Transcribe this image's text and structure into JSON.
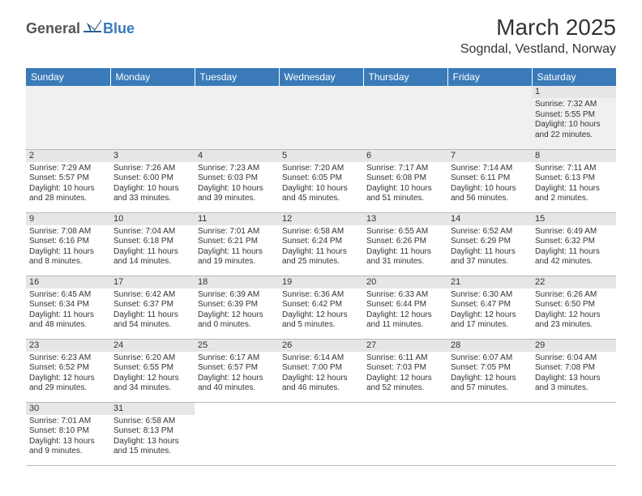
{
  "logo": {
    "general": "General",
    "blue": "Blue"
  },
  "title": "March 2025",
  "location": "Sogndal, Vestland, Norway",
  "colors": {
    "headerBar": "#3a7ab8",
    "dayNumBar": "#e6e6e6",
    "emptyCell": "#f0f0f0",
    "text": "#333333",
    "border": "#b8b8b8"
  },
  "weekdays": [
    "Sunday",
    "Monday",
    "Tuesday",
    "Wednesday",
    "Thursday",
    "Friday",
    "Saturday"
  ],
  "weeks": [
    [
      null,
      null,
      null,
      null,
      null,
      null,
      {
        "day": "1",
        "sunrise": "Sunrise: 7:32 AM",
        "sunset": "Sunset: 5:55 PM",
        "daylight1": "Daylight: 10 hours",
        "daylight2": "and 22 minutes."
      }
    ],
    [
      {
        "day": "2",
        "sunrise": "Sunrise: 7:29 AM",
        "sunset": "Sunset: 5:57 PM",
        "daylight1": "Daylight: 10 hours",
        "daylight2": "and 28 minutes."
      },
      {
        "day": "3",
        "sunrise": "Sunrise: 7:26 AM",
        "sunset": "Sunset: 6:00 PM",
        "daylight1": "Daylight: 10 hours",
        "daylight2": "and 33 minutes."
      },
      {
        "day": "4",
        "sunrise": "Sunrise: 7:23 AM",
        "sunset": "Sunset: 6:03 PM",
        "daylight1": "Daylight: 10 hours",
        "daylight2": "and 39 minutes."
      },
      {
        "day": "5",
        "sunrise": "Sunrise: 7:20 AM",
        "sunset": "Sunset: 6:05 PM",
        "daylight1": "Daylight: 10 hours",
        "daylight2": "and 45 minutes."
      },
      {
        "day": "6",
        "sunrise": "Sunrise: 7:17 AM",
        "sunset": "Sunset: 6:08 PM",
        "daylight1": "Daylight: 10 hours",
        "daylight2": "and 51 minutes."
      },
      {
        "day": "7",
        "sunrise": "Sunrise: 7:14 AM",
        "sunset": "Sunset: 6:11 PM",
        "daylight1": "Daylight: 10 hours",
        "daylight2": "and 56 minutes."
      },
      {
        "day": "8",
        "sunrise": "Sunrise: 7:11 AM",
        "sunset": "Sunset: 6:13 PM",
        "daylight1": "Daylight: 11 hours",
        "daylight2": "and 2 minutes."
      }
    ],
    [
      {
        "day": "9",
        "sunrise": "Sunrise: 7:08 AM",
        "sunset": "Sunset: 6:16 PM",
        "daylight1": "Daylight: 11 hours",
        "daylight2": "and 8 minutes."
      },
      {
        "day": "10",
        "sunrise": "Sunrise: 7:04 AM",
        "sunset": "Sunset: 6:18 PM",
        "daylight1": "Daylight: 11 hours",
        "daylight2": "and 14 minutes."
      },
      {
        "day": "11",
        "sunrise": "Sunrise: 7:01 AM",
        "sunset": "Sunset: 6:21 PM",
        "daylight1": "Daylight: 11 hours",
        "daylight2": "and 19 minutes."
      },
      {
        "day": "12",
        "sunrise": "Sunrise: 6:58 AM",
        "sunset": "Sunset: 6:24 PM",
        "daylight1": "Daylight: 11 hours",
        "daylight2": "and 25 minutes."
      },
      {
        "day": "13",
        "sunrise": "Sunrise: 6:55 AM",
        "sunset": "Sunset: 6:26 PM",
        "daylight1": "Daylight: 11 hours",
        "daylight2": "and 31 minutes."
      },
      {
        "day": "14",
        "sunrise": "Sunrise: 6:52 AM",
        "sunset": "Sunset: 6:29 PM",
        "daylight1": "Daylight: 11 hours",
        "daylight2": "and 37 minutes."
      },
      {
        "day": "15",
        "sunrise": "Sunrise: 6:49 AM",
        "sunset": "Sunset: 6:32 PM",
        "daylight1": "Daylight: 11 hours",
        "daylight2": "and 42 minutes."
      }
    ],
    [
      {
        "day": "16",
        "sunrise": "Sunrise: 6:45 AM",
        "sunset": "Sunset: 6:34 PM",
        "daylight1": "Daylight: 11 hours",
        "daylight2": "and 48 minutes."
      },
      {
        "day": "17",
        "sunrise": "Sunrise: 6:42 AM",
        "sunset": "Sunset: 6:37 PM",
        "daylight1": "Daylight: 11 hours",
        "daylight2": "and 54 minutes."
      },
      {
        "day": "18",
        "sunrise": "Sunrise: 6:39 AM",
        "sunset": "Sunset: 6:39 PM",
        "daylight1": "Daylight: 12 hours",
        "daylight2": "and 0 minutes."
      },
      {
        "day": "19",
        "sunrise": "Sunrise: 6:36 AM",
        "sunset": "Sunset: 6:42 PM",
        "daylight1": "Daylight: 12 hours",
        "daylight2": "and 5 minutes."
      },
      {
        "day": "20",
        "sunrise": "Sunrise: 6:33 AM",
        "sunset": "Sunset: 6:44 PM",
        "daylight1": "Daylight: 12 hours",
        "daylight2": "and 11 minutes."
      },
      {
        "day": "21",
        "sunrise": "Sunrise: 6:30 AM",
        "sunset": "Sunset: 6:47 PM",
        "daylight1": "Daylight: 12 hours",
        "daylight2": "and 17 minutes."
      },
      {
        "day": "22",
        "sunrise": "Sunrise: 6:26 AM",
        "sunset": "Sunset: 6:50 PM",
        "daylight1": "Daylight: 12 hours",
        "daylight2": "and 23 minutes."
      }
    ],
    [
      {
        "day": "23",
        "sunrise": "Sunrise: 6:23 AM",
        "sunset": "Sunset: 6:52 PM",
        "daylight1": "Daylight: 12 hours",
        "daylight2": "and 29 minutes."
      },
      {
        "day": "24",
        "sunrise": "Sunrise: 6:20 AM",
        "sunset": "Sunset: 6:55 PM",
        "daylight1": "Daylight: 12 hours",
        "daylight2": "and 34 minutes."
      },
      {
        "day": "25",
        "sunrise": "Sunrise: 6:17 AM",
        "sunset": "Sunset: 6:57 PM",
        "daylight1": "Daylight: 12 hours",
        "daylight2": "and 40 minutes."
      },
      {
        "day": "26",
        "sunrise": "Sunrise: 6:14 AM",
        "sunset": "Sunset: 7:00 PM",
        "daylight1": "Daylight: 12 hours",
        "daylight2": "and 46 minutes."
      },
      {
        "day": "27",
        "sunrise": "Sunrise: 6:11 AM",
        "sunset": "Sunset: 7:03 PM",
        "daylight1": "Daylight: 12 hours",
        "daylight2": "and 52 minutes."
      },
      {
        "day": "28",
        "sunrise": "Sunrise: 6:07 AM",
        "sunset": "Sunset: 7:05 PM",
        "daylight1": "Daylight: 12 hours",
        "daylight2": "and 57 minutes."
      },
      {
        "day": "29",
        "sunrise": "Sunrise: 6:04 AM",
        "sunset": "Sunset: 7:08 PM",
        "daylight1": "Daylight: 13 hours",
        "daylight2": "and 3 minutes."
      }
    ],
    [
      {
        "day": "30",
        "sunrise": "Sunrise: 7:01 AM",
        "sunset": "Sunset: 8:10 PM",
        "daylight1": "Daylight: 13 hours",
        "daylight2": "and 9 minutes."
      },
      {
        "day": "31",
        "sunrise": "Sunrise: 6:58 AM",
        "sunset": "Sunset: 8:13 PM",
        "daylight1": "Daylight: 13 hours",
        "daylight2": "and 15 minutes."
      },
      null,
      null,
      null,
      null,
      null
    ]
  ]
}
